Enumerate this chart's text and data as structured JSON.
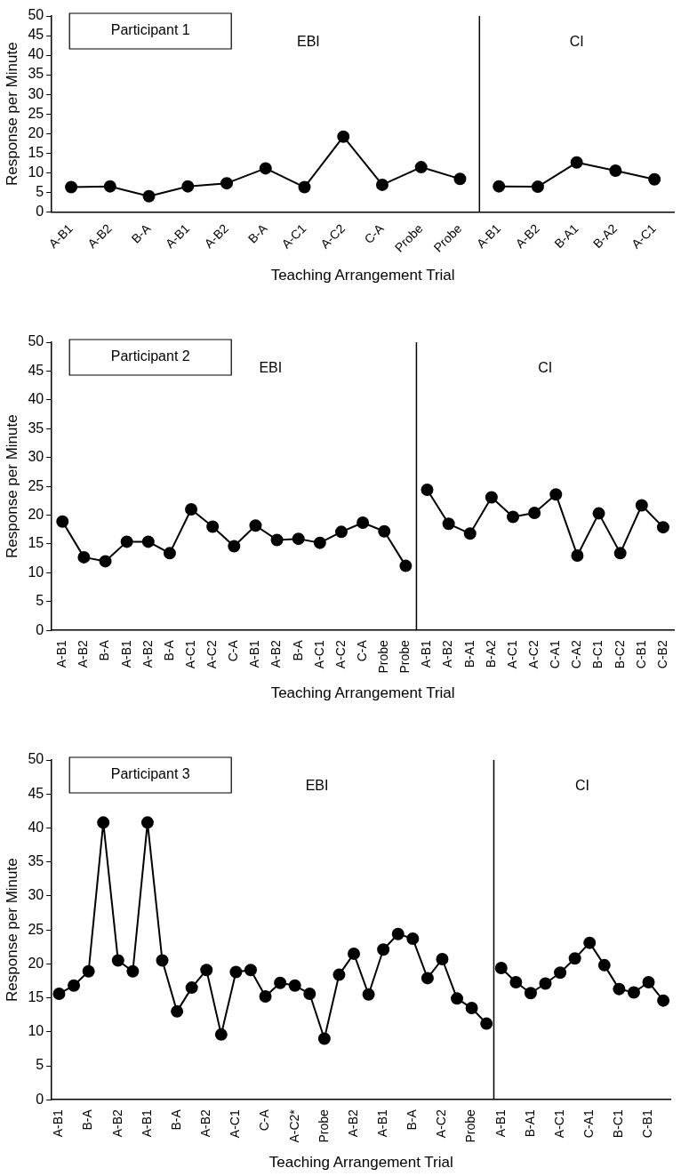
{
  "chart_data": [
    {
      "type": "line",
      "title": "Participant 1",
      "xlabel": "Teaching Arrangement Trial",
      "ylabel": "Response per Minute",
      "annotations": [
        "EBI",
        "CI"
      ],
      "categories": [
        "A-B1",
        "A-B2",
        "B-A",
        "A-B1",
        "A-B2",
        "B-A",
        "A-C1",
        "A-C2",
        "C-A",
        "Probe",
        "Probe",
        "A-B1",
        "A-B2",
        "B-A1",
        "B-A2",
        "A-C1"
      ],
      "series": [
        {
          "color": "#000000",
          "values": [
            6.3,
            6.5,
            4,
            6.5,
            7.3,
            11.1,
            6.3,
            19.2,
            6.9,
            11.4,
            8.4,
            null,
            null,
            null,
            null,
            null
          ]
        },
        {
          "color": "#000000",
          "values": [
            null,
            null,
            null,
            null,
            null,
            null,
            null,
            null,
            null,
            null,
            null,
            6.5,
            6.4,
            12.6,
            10.5,
            8.3
          ]
        }
      ],
      "ylim": [
        0,
        50
      ],
      "yticks": [
        0,
        5,
        10,
        15,
        20,
        25,
        30,
        35,
        40,
        45,
        50
      ],
      "grid": false,
      "legend": false,
      "marker": "circle",
      "line_style": "solid"
    },
    {
      "type": "line",
      "title": "Participant 2",
      "xlabel": "Teaching Arrangement Trial",
      "ylabel": "Response per Minute",
      "annotations": [
        "EBI",
        "CI"
      ],
      "categories": [
        "A-B1",
        "A-B2",
        "B-A",
        "A-B1",
        "A-B2",
        "B-A",
        "A-C1",
        "A-C2",
        "C-A",
        "A-B1",
        "A-B2",
        "B-A",
        "A-C1",
        "A-C2",
        "C-A",
        "Probe",
        "Probe",
        "A-B1",
        "A-B2",
        "B-A1",
        "B-A2",
        "A-C1",
        "A-C2",
        "C-A1",
        "C-A2",
        "B-C1",
        "B-C2",
        "C-B1",
        "C-B2"
      ],
      "series": [
        {
          "color": "#000000",
          "values": [
            18.9,
            12.7,
            12,
            15.4,
            15.4,
            13.4,
            21,
            18,
            14.6,
            18.2,
            15.7,
            15.9,
            15.2,
            17.1,
            18.7,
            17.2,
            11.2,
            null,
            null,
            null,
            null,
            null,
            null,
            null,
            null,
            null,
            null,
            null,
            null
          ]
        },
        {
          "color": "#000000",
          "values": [
            null,
            null,
            null,
            null,
            null,
            null,
            null,
            null,
            null,
            null,
            null,
            null,
            null,
            null,
            null,
            null,
            null,
            24.4,
            18.5,
            16.8,
            23.1,
            19.7,
            20.4,
            23.6,
            13,
            20.3,
            13.4,
            21.7,
            17.9
          ]
        }
      ],
      "ylim": [
        0,
        50
      ],
      "yticks": [
        0,
        5,
        10,
        15,
        20,
        25,
        30,
        35,
        40,
        45,
        50
      ],
      "grid": false,
      "legend": false,
      "marker": "circle",
      "line_style": "solid"
    },
    {
      "type": "line",
      "title": "Participant 3",
      "xlabel": "Teaching Arrangement Trial",
      "ylabel": "Response per Minute",
      "annotations": [
        "EBI",
        "CI"
      ],
      "categories": [
        "A-B1",
        null,
        "B-A",
        null,
        "A-B2",
        null,
        "A-B1",
        null,
        "B-A",
        null,
        "A-B2",
        null,
        "A-C1",
        null,
        "C-A",
        null,
        "A-C2*",
        null,
        "Probe",
        null,
        "A-B2",
        null,
        "A-B1",
        null,
        "B-A",
        null,
        "A-C2",
        null,
        "Probe",
        null,
        "A-B1",
        null,
        "B-A1",
        null,
        "A-C1",
        null,
        "C-A1",
        null,
        "B-C1",
        null,
        "C-B1",
        null
      ],
      "series": [
        {
          "color": "#000000",
          "values": [
            15.6,
            16.8,
            18.9,
            40.8,
            20.5,
            18.9,
            40.8,
            20.5,
            13,
            16.5,
            19.1,
            9.6,
            18.8,
            19.1,
            15.2,
            17.2,
            16.8,
            15.6,
            9,
            18.4,
            21.5,
            15.5,
            22.1,
            24.4,
            23.7,
            17.9,
            20.7,
            14.9,
            13.5,
            11.2,
            null,
            null,
            null,
            null,
            null,
            null,
            null,
            null,
            null,
            null,
            null,
            null
          ]
        },
        {
          "color": "#000000",
          "values": [
            null,
            null,
            null,
            null,
            null,
            null,
            null,
            null,
            null,
            null,
            null,
            null,
            null,
            null,
            null,
            null,
            null,
            null,
            null,
            null,
            null,
            null,
            null,
            null,
            null,
            null,
            null,
            null,
            null,
            null,
            19.4,
            17.3,
            15.7,
            17.1,
            18.7,
            20.8,
            23.1,
            19.8,
            16.3,
            15.8,
            17.3,
            14.6
          ]
        }
      ],
      "ylim": [
        0,
        50
      ],
      "yticks": [
        0,
        5,
        10,
        15,
        20,
        25,
        30,
        35,
        40,
        45,
        50
      ],
      "grid": false,
      "legend": false,
      "marker": "circle",
      "line_style": "solid"
    }
  ]
}
